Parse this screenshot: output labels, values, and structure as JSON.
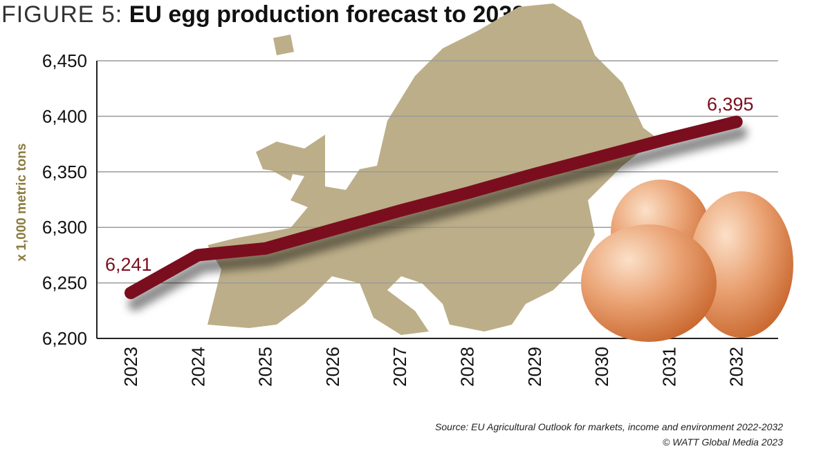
{
  "title": {
    "prefix": "FIGURE 5:",
    "main": "EU egg production forecast to 2032"
  },
  "source": {
    "line1": "Source: EU Agricultural Outlook for markets, income and environment 2022-2032",
    "line2": "© WATT Global Media 2023"
  },
  "chart_data": {
    "type": "line",
    "title": "EU egg production forecast to 2032",
    "xlabel": "",
    "ylabel": "x 1,000 metric tons",
    "categories": [
      "2023",
      "2024",
      "2025",
      "2026",
      "2027",
      "2028",
      "2029",
      "2030",
      "2031",
      "2032"
    ],
    "values": [
      6241,
      6275,
      6281,
      6298,
      6315,
      6331,
      6348,
      6364,
      6380,
      6395
    ],
    "ylim": [
      6200,
      6450
    ],
    "yticks": [
      "6,200",
      "6,250",
      "6,300",
      "6,350",
      "6,400",
      "6,450"
    ],
    "data_labels": {
      "first": "6,241",
      "last": "6,395"
    },
    "grid": "horizontal",
    "colors": {
      "line": "#7a0e1e",
      "map": "#bcae88",
      "grid": "#9a9a9a",
      "ylabel": "#8a7a3e"
    }
  }
}
